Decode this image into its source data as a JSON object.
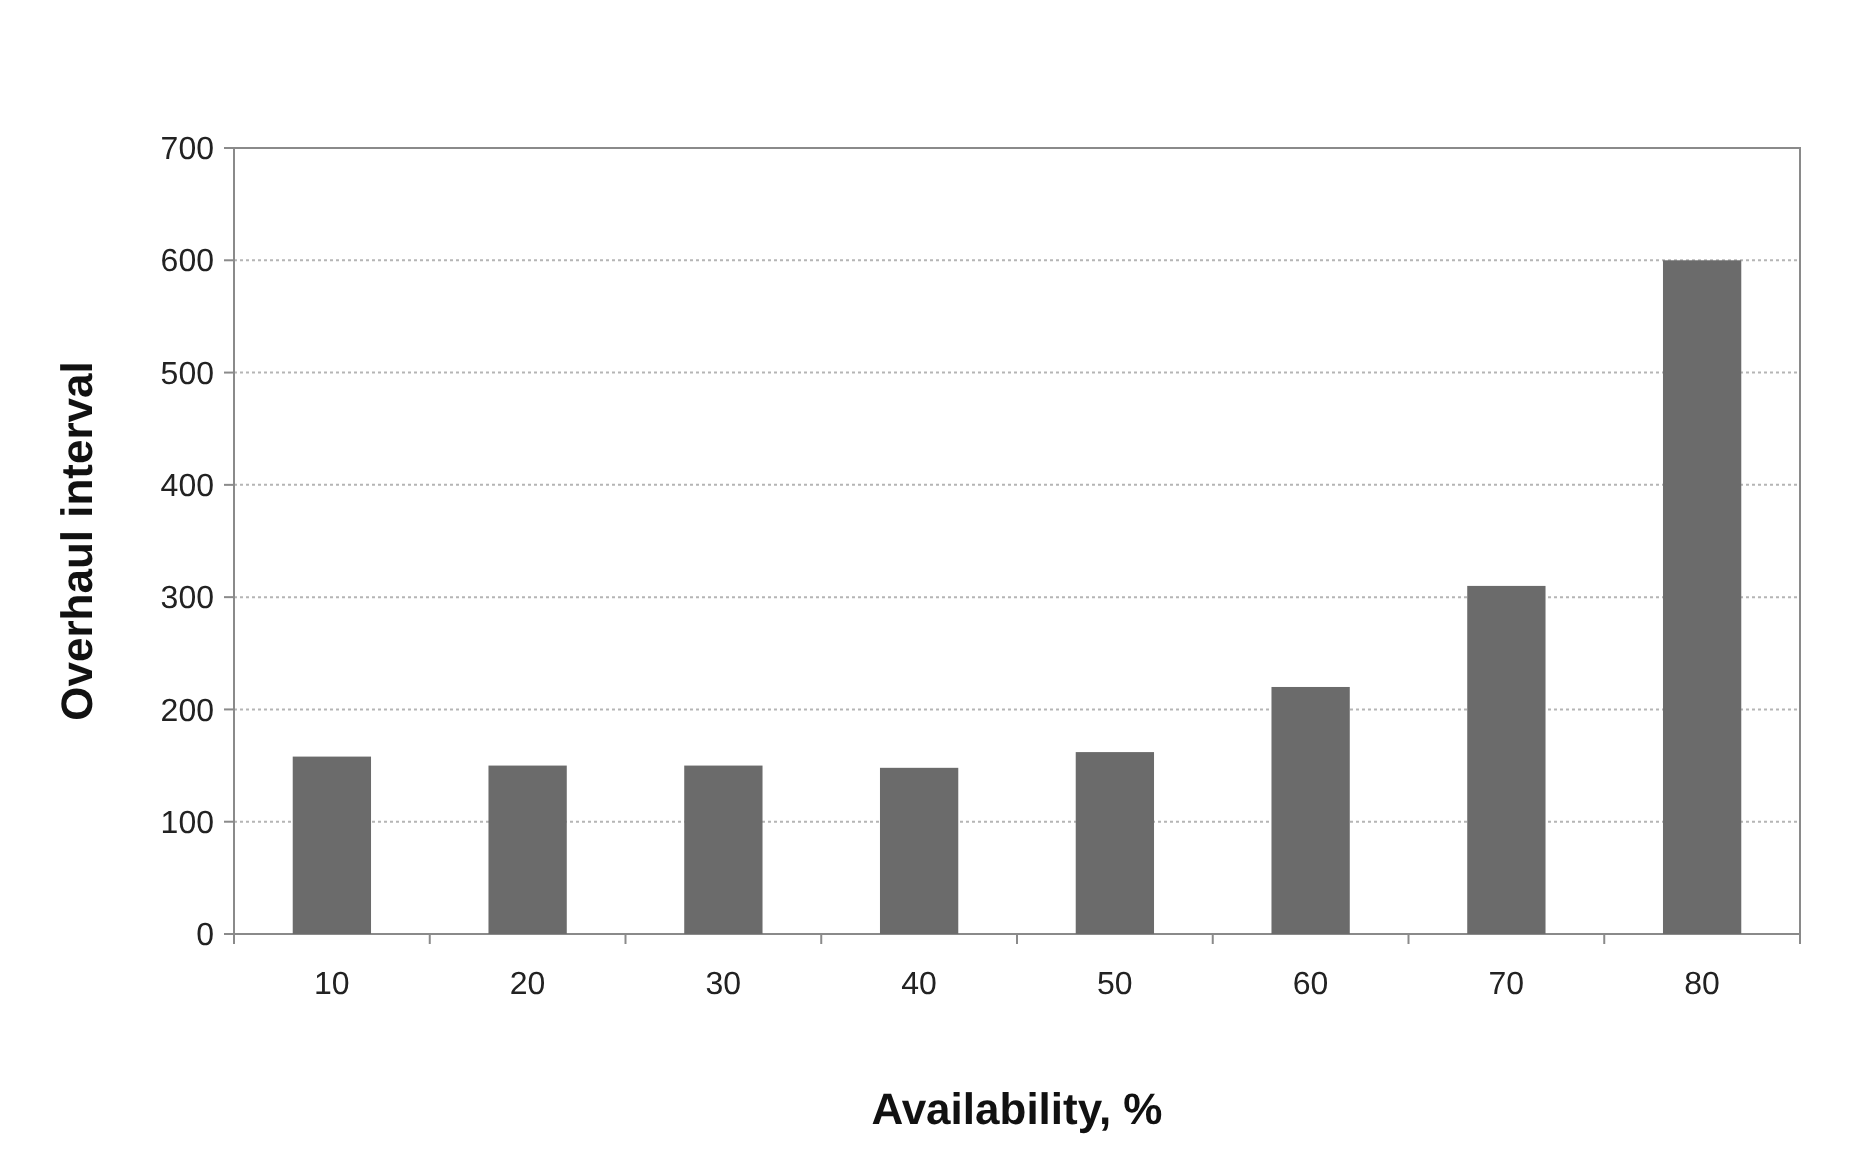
{
  "chart_data": {
    "type": "bar",
    "xlabel": "Availability, %",
    "ylabel": "Overhaul interval",
    "categories": [
      "10",
      "20",
      "30",
      "40",
      "50",
      "60",
      "70",
      "80"
    ],
    "values": [
      158,
      150,
      150,
      148,
      162,
      220,
      310,
      600
    ],
    "color": "#6b6b6b",
    "ylim": [
      0,
      700
    ],
    "yticks": [
      0,
      100,
      200,
      300,
      400,
      500,
      600,
      700
    ],
    "grid": "y"
  }
}
